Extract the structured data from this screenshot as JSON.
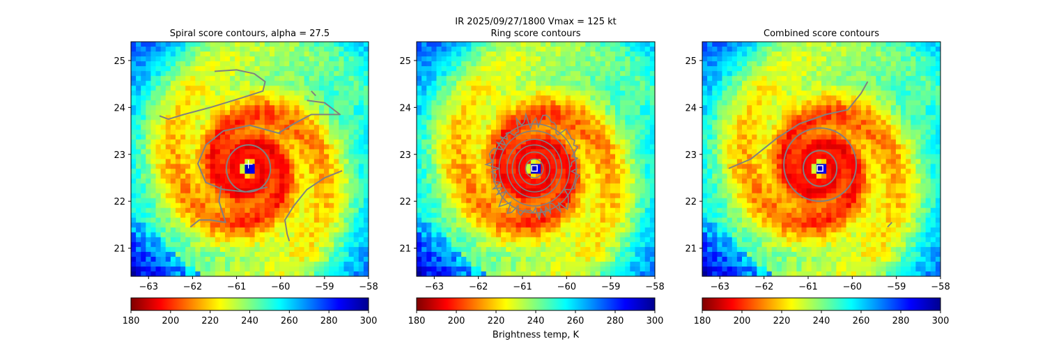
{
  "suptitle": "IR  2025/09/27/1800    Vmax = 125 kt",
  "colorbar": {
    "label": "Brightness temp, K",
    "ticks": [
      180,
      200,
      220,
      240,
      260,
      280,
      300
    ],
    "range": [
      180,
      300
    ],
    "colormap": "jet_r",
    "stops": [
      "#7f0000",
      "#ff0000",
      "#ff8000",
      "#ffff00",
      "#80ff80",
      "#00ffff",
      "#0080ff",
      "#0000ff",
      "#00008f"
    ]
  },
  "chart_data": [
    {
      "type": "heatmap",
      "title": "Spiral score contours, alpha = 27.5",
      "xlim": [
        -63.4,
        -58.0
      ],
      "ylim": [
        20.4,
        25.4
      ],
      "xticks": [
        -63,
        -62,
        -61,
        -60,
        -59,
        -58
      ],
      "yticks": [
        21,
        22,
        23,
        24,
        25
      ],
      "center": [
        -60.73,
        22.7
      ],
      "center_marker": "plus",
      "contour_color": "#808080",
      "contours": [
        [
          [
            -61.5,
            24.77
          ],
          [
            -61.0,
            24.8
          ],
          [
            -60.6,
            24.72
          ],
          [
            -60.35,
            24.55
          ],
          [
            -60.4,
            24.35
          ],
          [
            -60.9,
            24.2
          ],
          [
            -61.6,
            24.0
          ],
          [
            -62.2,
            23.85
          ],
          [
            -62.55,
            23.75
          ],
          [
            -62.75,
            23.82
          ]
        ],
        [
          [
            -59.4,
            24.15
          ],
          [
            -59.0,
            24.1
          ],
          [
            -58.65,
            23.85
          ],
          [
            -59.3,
            23.85
          ],
          [
            -59.7,
            23.65
          ],
          [
            -60.05,
            23.45
          ]
        ],
        [
          [
            -60.0,
            23.44
          ],
          [
            -60.7,
            23.62
          ],
          [
            -61.3,
            23.5
          ],
          [
            -61.7,
            23.2
          ],
          [
            -61.88,
            22.8
          ],
          [
            -61.7,
            22.4
          ],
          [
            -61.3,
            22.25
          ],
          [
            -60.8,
            22.2
          ],
          [
            -60.3,
            22.3
          ]
        ],
        [
          [
            -61.35,
            22.33
          ],
          [
            -61.4,
            22.0
          ],
          [
            -61.3,
            21.7
          ],
          [
            -61.25,
            21.55
          ],
          [
            -61.6,
            21.6
          ],
          [
            -61.85,
            21.6
          ],
          [
            -62.05,
            21.45
          ]
        ],
        [
          [
            -58.6,
            22.65
          ],
          [
            -59.0,
            22.5
          ],
          [
            -59.4,
            22.25
          ],
          [
            -59.7,
            21.9
          ],
          [
            -59.9,
            21.6
          ],
          [
            -59.85,
            21.3
          ],
          [
            -59.8,
            21.15
          ]
        ],
        [
          [
            -60.73,
            22.7,
            0.5,
            0.5,
            "ring"
          ]
        ],
        [
          [
            -59.3,
            24.35
          ],
          [
            -59.2,
            24.25
          ]
        ]
      ]
    },
    {
      "type": "heatmap",
      "title": "Ring score contours",
      "xlim": [
        -63.4,
        -58.0
      ],
      "ylim": [
        20.4,
        25.4
      ],
      "xticks": [
        -63,
        -62,
        -61,
        -60,
        -59,
        -58
      ],
      "yticks": [
        21,
        22,
        23,
        24,
        25
      ],
      "center": [
        -60.73,
        22.7
      ],
      "center_marker": "square",
      "contour_color": "#808080",
      "ring_radii": [
        0.2,
        0.35,
        0.5,
        0.62,
        0.8,
        0.95
      ],
      "ragged_radius": 0.95
    },
    {
      "type": "heatmap",
      "title": "Combined score contours",
      "xlim": [
        -63.4,
        -58.0
      ],
      "ylim": [
        20.4,
        25.4
      ],
      "xticks": [
        -63,
        -62,
        -61,
        -60,
        -59,
        -58
      ],
      "yticks": [
        21,
        22,
        23,
        24,
        25
      ],
      "center": [
        -60.73,
        22.7
      ],
      "center_marker": "square",
      "contour_color": "#808080",
      "contours": [
        [
          [
            -62.8,
            22.7
          ],
          [
            -62.3,
            22.9
          ],
          [
            -61.7,
            23.35
          ],
          [
            -61.2,
            23.65
          ],
          [
            -60.6,
            23.85
          ],
          [
            -60.1,
            23.95
          ],
          [
            -59.8,
            24.3
          ],
          [
            -59.65,
            24.55
          ]
        ],
        [
          [
            -60.73,
            22.78,
            0.82,
            0.78,
            "ring"
          ]
        ],
        [
          [
            -60.73,
            22.7,
            0.38,
            0.38,
            "ring"
          ]
        ],
        [
          [
            -59.2,
            21.45
          ],
          [
            -59.1,
            21.55
          ]
        ]
      ]
    }
  ]
}
